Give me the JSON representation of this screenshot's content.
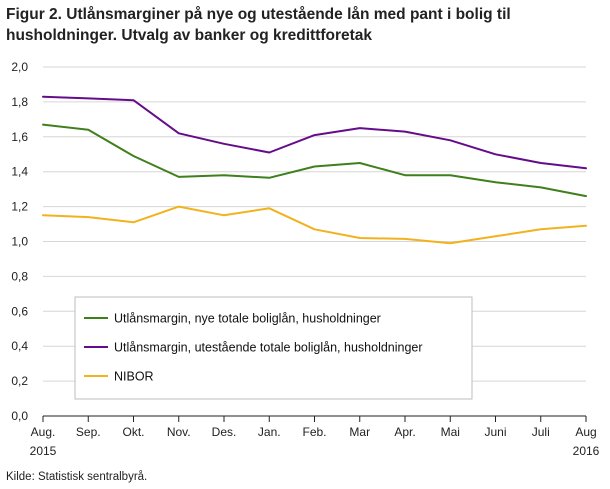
{
  "figure": {
    "title": "Figur 2. Utlånsmarginer på nye og utestående lån med pant i bolig til husholdninger. Utvalg av banker og kredittforetak",
    "source": "Kilde: Statistisk sentralbyrå."
  },
  "chart_data": {
    "type": "line",
    "categories": [
      "Aug.",
      "Sep.",
      "Okt.",
      "Nov.",
      "Des.",
      "Jan.",
      "Feb.",
      "Mar",
      "Apr.",
      "Mai",
      "Juni",
      "Juli",
      "Aug"
    ],
    "year_labels": {
      "first": "2015",
      "last": "2016"
    },
    "ylim": [
      0,
      2.0
    ],
    "yticks": [
      "0,0",
      "0,2",
      "0,4",
      "0,6",
      "0,8",
      "1,0",
      "1,2",
      "1,4",
      "1,6",
      "1,8",
      "2,0"
    ],
    "grid": "horizontal",
    "legend_position": "bottom-left",
    "series": [
      {
        "name": "Utlånsmargin, nye totale boliglån, husholdninger",
        "color": "#3f7f1c",
        "values": [
          1.67,
          1.64,
          1.49,
          1.37,
          1.38,
          1.365,
          1.43,
          1.45,
          1.38,
          1.38,
          1.34,
          1.31,
          1.26
        ]
      },
      {
        "name": "Utlånsmargin, utestående totale boliglån, husholdninger",
        "color": "#650c8a",
        "values": [
          1.83,
          1.82,
          1.81,
          1.62,
          1.56,
          1.51,
          1.61,
          1.65,
          1.63,
          1.58,
          1.5,
          1.45,
          1.42
        ]
      },
      {
        "name": "NIBOR",
        "color": "#f2b21e",
        "values": [
          1.15,
          1.14,
          1.11,
          1.2,
          1.15,
          1.19,
          1.07,
          1.02,
          1.015,
          0.99,
          1.03,
          1.07,
          1.09
        ]
      }
    ]
  }
}
